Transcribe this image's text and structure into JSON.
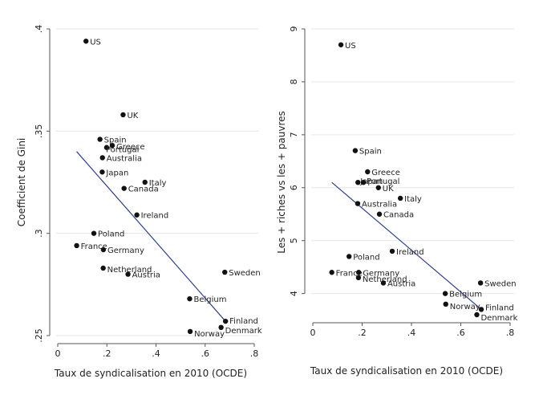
{
  "chart_data": [
    {
      "type": "scatter",
      "xlabel": "Taux de syndicalisation en 2010 (OCDE)",
      "ylabel": "Coefficient de Gini",
      "xlim": [
        0,
        0.8
      ],
      "ylim": [
        0.25,
        0.4
      ],
      "xticks": [
        0,
        0.2,
        0.4,
        0.6,
        0.8
      ],
      "xtick_labels": [
        "0",
        ".2",
        ".4",
        ".6",
        ".8"
      ],
      "yticks": [
        0.25,
        0.3,
        0.35,
        0.4
      ],
      "ytick_labels": [
        ".25",
        ".3",
        ".35",
        ".4"
      ],
      "grid": "horizontal",
      "points": [
        {
          "label": "US",
          "x": 0.115,
          "y": 0.394
        },
        {
          "label": "UK",
          "x": 0.266,
          "y": 0.358
        },
        {
          "label": "Spain",
          "x": 0.172,
          "y": 0.346
        },
        {
          "label": "Greece",
          "x": 0.222,
          "y": 0.343
        },
        {
          "label": "Portugal",
          "x": 0.199,
          "y": 0.342
        },
        {
          "label": "Australia",
          "x": 0.182,
          "y": 0.337
        },
        {
          "label": "Japan",
          "x": 0.181,
          "y": 0.33
        },
        {
          "label": "Italy",
          "x": 0.355,
          "y": 0.325
        },
        {
          "label": "Canada",
          "x": 0.27,
          "y": 0.322
        },
        {
          "label": "Ireland",
          "x": 0.322,
          "y": 0.309
        },
        {
          "label": "Poland",
          "x": 0.147,
          "y": 0.3
        },
        {
          "label": "France",
          "x": 0.077,
          "y": 0.294
        },
        {
          "label": "Germany",
          "x": 0.186,
          "y": 0.292
        },
        {
          "label": "Netherland",
          "x": 0.185,
          "y": 0.283
        },
        {
          "label": "Austria",
          "x": 0.286,
          "y": 0.28
        },
        {
          "label": "Sweden",
          "x": 0.68,
          "y": 0.281
        },
        {
          "label": "Belgium",
          "x": 0.537,
          "y": 0.268
        },
        {
          "label": "Finland",
          "x": 0.683,
          "y": 0.257
        },
        {
          "label": "Denmark",
          "x": 0.665,
          "y": 0.254
        },
        {
          "label": "Norway",
          "x": 0.539,
          "y": 0.252
        }
      ],
      "fit_line": {
        "x": [
          0.077,
          0.683
        ],
        "y": [
          0.34,
          0.257
        ]
      }
    },
    {
      "type": "scatter",
      "xlabel": "Taux de syndicalisation en 2010 (OCDE)",
      "ylabel": "Les + riches vs les + pauvres",
      "xlim": [
        0,
        0.8
      ],
      "ylim": [
        3.6,
        9
      ],
      "xticks": [
        0,
        0.2,
        0.4,
        0.6,
        0.8
      ],
      "xtick_labels": [
        "0",
        ".2",
        ".4",
        ".6",
        ".8"
      ],
      "yticks": [
        4,
        5,
        6,
        7,
        8,
        9
      ],
      "ytick_labels": [
        "4",
        "5",
        "6",
        "7",
        "8",
        "9"
      ],
      "grid": "horizontal",
      "points": [
        {
          "label": "US",
          "x": 0.114,
          "y": 8.7
        },
        {
          "label": "Spain",
          "x": 0.172,
          "y": 6.7
        },
        {
          "label": "Greece",
          "x": 0.222,
          "y": 6.3
        },
        {
          "label": "Japan",
          "x": 0.183,
          "y": 6.1
        },
        {
          "label": "Portugal",
          "x": 0.205,
          "y": 6.1
        },
        {
          "label": "UK",
          "x": 0.266,
          "y": 6.0
        },
        {
          "label": "Italy",
          "x": 0.355,
          "y": 5.8
        },
        {
          "label": "Australia",
          "x": 0.182,
          "y": 5.7
        },
        {
          "label": "Canada",
          "x": 0.27,
          "y": 5.5
        },
        {
          "label": "Ireland",
          "x": 0.322,
          "y": 4.8
        },
        {
          "label": "Poland",
          "x": 0.147,
          "y": 4.7
        },
        {
          "label": "France",
          "x": 0.077,
          "y": 4.4
        },
        {
          "label": "Germany",
          "x": 0.186,
          "y": 4.4
        },
        {
          "label": "Netherland",
          "x": 0.185,
          "y": 4.3
        },
        {
          "label": "Austria",
          "x": 0.286,
          "y": 4.2
        },
        {
          "label": "Sweden",
          "x": 0.68,
          "y": 4.2
        },
        {
          "label": "Belgium",
          "x": 0.537,
          "y": 4.0
        },
        {
          "label": "Norway",
          "x": 0.539,
          "y": 3.8
        },
        {
          "label": "Finland",
          "x": 0.683,
          "y": 3.7
        },
        {
          "label": "Denmark",
          "x": 0.665,
          "y": 3.6
        }
      ],
      "fit_line": {
        "x": [
          0.077,
          0.683
        ],
        "y": [
          6.1,
          3.7
        ]
      }
    }
  ]
}
